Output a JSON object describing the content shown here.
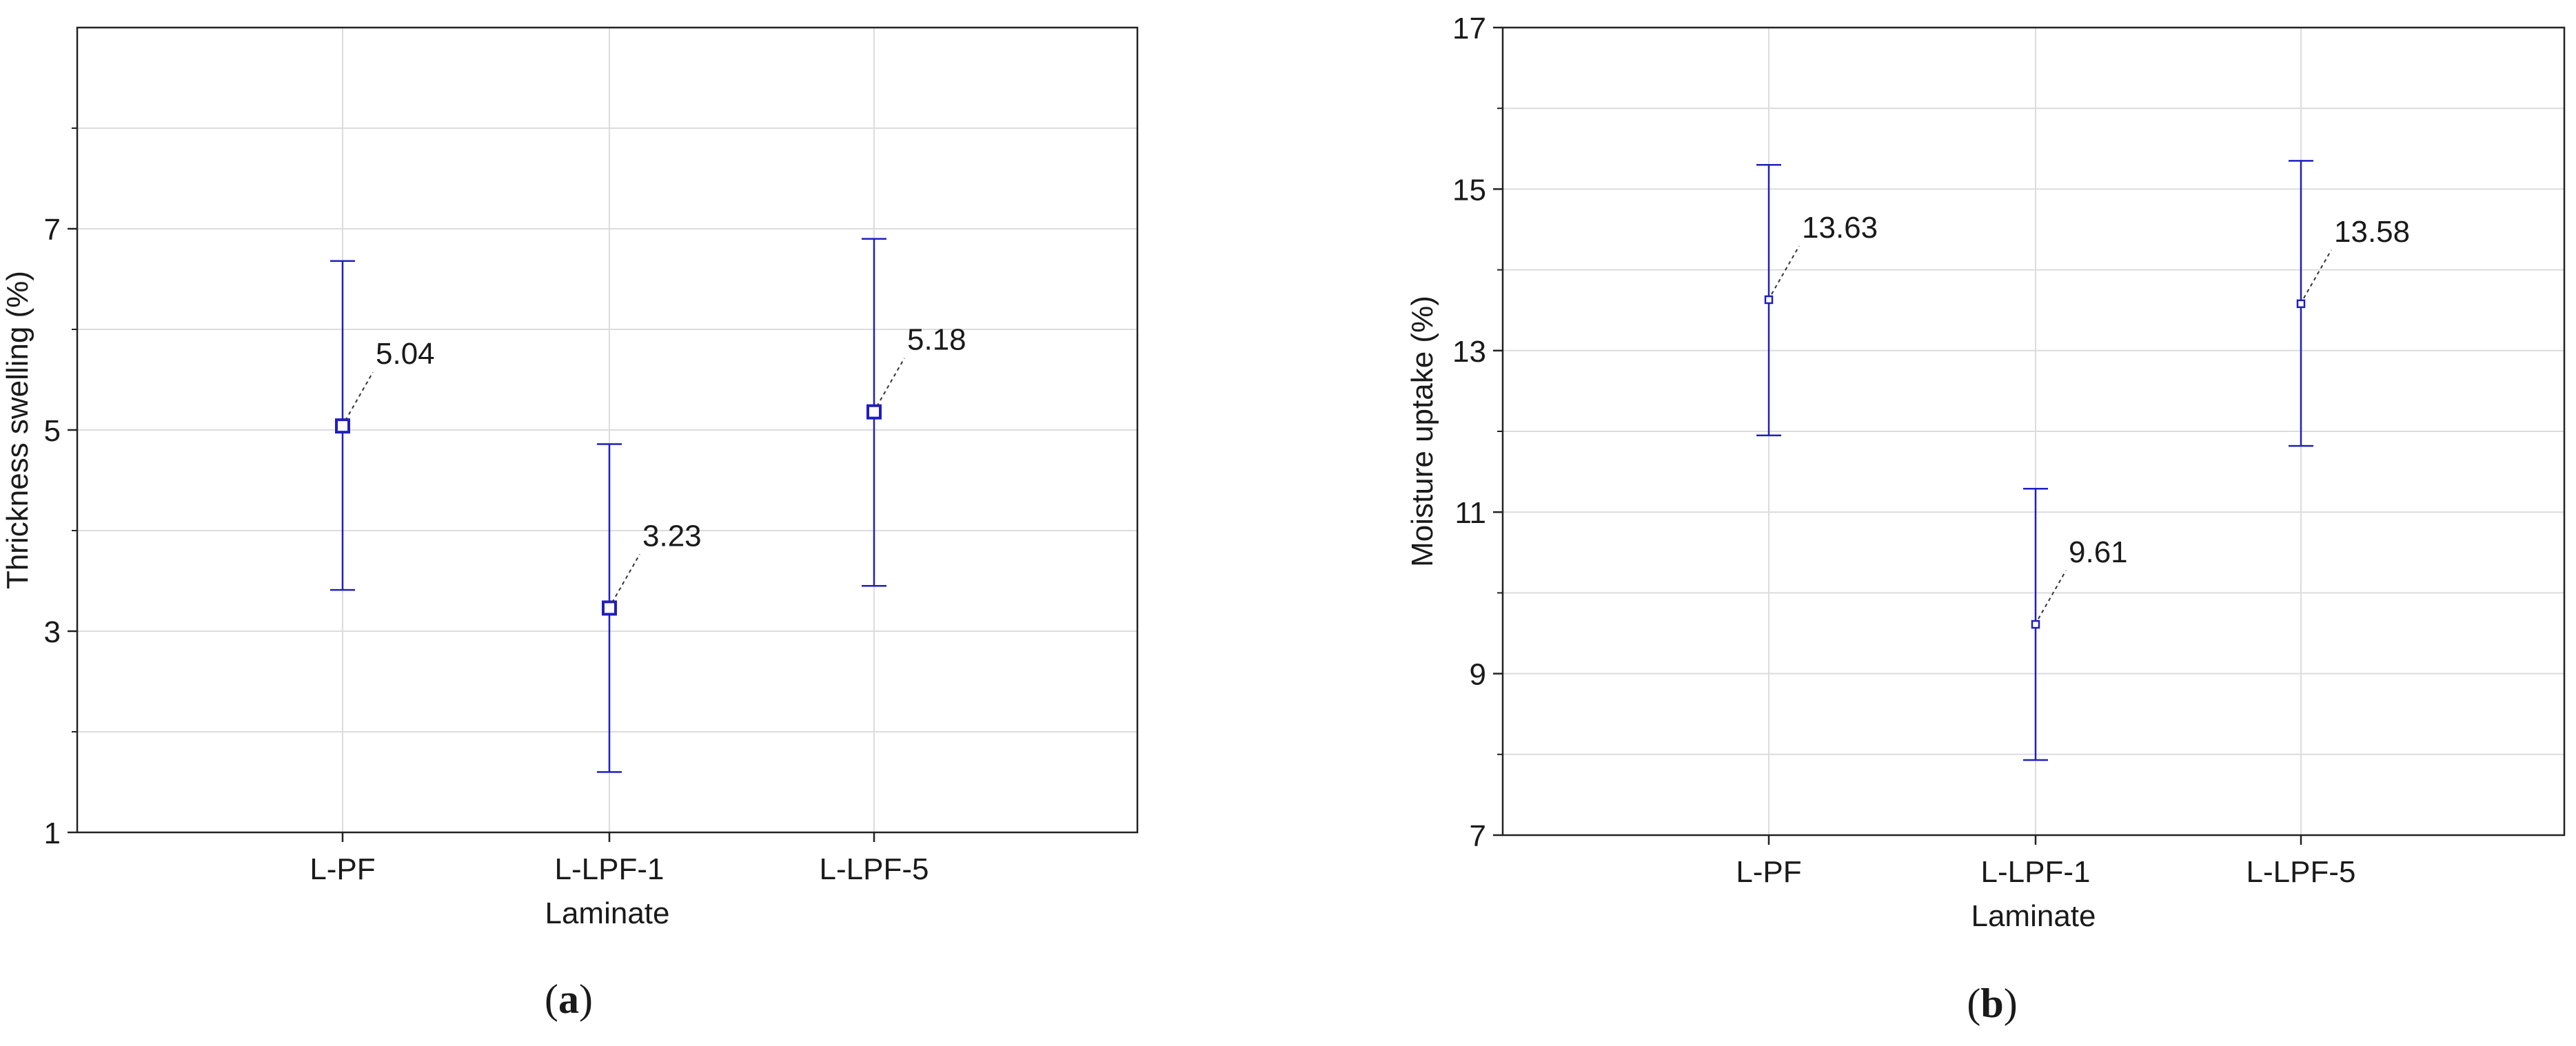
{
  "chart_data": [
    {
      "type": "scatter",
      "panel_label": "a",
      "categories": [
        "L-PF",
        "L-LPF-1",
        "L-LPF-5"
      ],
      "means": [
        5.04,
        3.23,
        5.18
      ],
      "lower": [
        3.41,
        1.6,
        3.45
      ],
      "upper": [
        6.68,
        4.86,
        6.9
      ],
      "data_labels": [
        "5.04",
        "3.23",
        "5.18"
      ],
      "xlabel": "Laminate",
      "ylabel": "Thrickness swelling (%)",
      "ylim": [
        1,
        9
      ],
      "yticks": [
        "1",
        "3",
        "5",
        "7"
      ],
      "ytick_values": [
        1,
        3,
        5,
        7
      ],
      "minor_grid": [
        2,
        4,
        6,
        8
      ],
      "grid": true,
      "marker": "square",
      "color": "#1f1fbf"
    },
    {
      "type": "scatter",
      "panel_label": "b",
      "categories": [
        "L-PF",
        "L-LPF-1",
        "L-LPF-5"
      ],
      "means": [
        13.63,
        9.61,
        13.58
      ],
      "lower": [
        11.95,
        7.93,
        11.82
      ],
      "upper": [
        15.3,
        11.29,
        15.35
      ],
      "data_labels": [
        "13.63",
        "9.61",
        "13.58"
      ],
      "xlabel": "Laminate",
      "ylabel": "Moisture uptake (%)",
      "ylim": [
        7,
        17
      ],
      "yticks": [
        "7",
        "9",
        "11",
        "13",
        "15",
        "17"
      ],
      "ytick_values": [
        7,
        9,
        11,
        13,
        15,
        17
      ],
      "minor_grid": [
        8,
        10,
        12,
        14,
        16
      ],
      "grid": true,
      "marker": "square",
      "color": "#1f1fbf"
    }
  ]
}
